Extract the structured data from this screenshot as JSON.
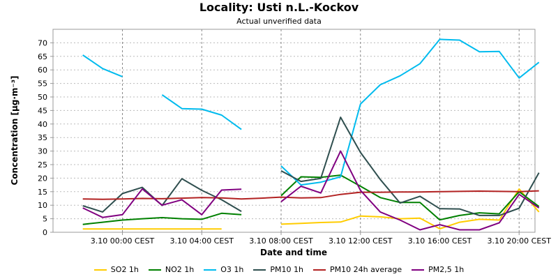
{
  "chart_data": {
    "type": "line",
    "title": "Locality: Usti n.L.-Kockov",
    "subtitle": "Actual unverified data",
    "xlabel": "Date and time",
    "ylabel": "Concentration [µg·m⁻³]",
    "ylim": [
      0,
      75
    ],
    "yticks": [
      0,
      5,
      10,
      15,
      20,
      25,
      30,
      35,
      40,
      45,
      50,
      55,
      60,
      65,
      70
    ],
    "xlim": [
      -3.5,
      20.8
    ],
    "xticks": [
      {
        "x": 0,
        "label": "3.10 00:00 CEST"
      },
      {
        "x": 4,
        "label": "3.10 04:00 CEST"
      },
      {
        "x": 8,
        "label": "3.10 08:00 CEST"
      },
      {
        "x": 12,
        "label": "3.10 12:00 CEST"
      },
      {
        "x": 16,
        "label": "3.10 16:00 CEST"
      },
      {
        "x": 20,
        "label": "3.10 20:00 CEST"
      }
    ],
    "x_hours": [
      -2,
      -1,
      0,
      1,
      2,
      3,
      4,
      5,
      6,
      7,
      8,
      9,
      10,
      11,
      12,
      13,
      14,
      15,
      16,
      17,
      18,
      19,
      20,
      21
    ],
    "grid": true,
    "legend_position": "bottom",
    "series": [
      {
        "name": "SO2 1h",
        "color": "#ffcc00",
        "values": [
          1.2,
          1.2,
          1.2,
          1.2,
          1.2,
          1.2,
          1.2,
          1.2,
          null,
          null,
          3,
          3.3,
          3.6,
          3.8,
          6,
          5.7,
          5,
          5.2,
          1.3,
          3.7,
          4.8,
          4.5,
          16,
          7.5
        ]
      },
      {
        "name": "NO2 1h",
        "color": "#008000",
        "values": [
          2.9,
          3.7,
          4.5,
          5,
          5.4,
          5,
          4.8,
          7,
          6.5,
          null,
          13.5,
          20.5,
          20.3,
          21.1,
          17,
          12.8,
          11,
          11,
          4.6,
          6.2,
          7.2,
          6.8,
          15,
          9.5
        ]
      },
      {
        "name": "O3 1h",
        "color": "#00bbee",
        "values": [
          65.5,
          60.5,
          57.5,
          null,
          50.8,
          45.7,
          45.5,
          43.3,
          38,
          null,
          24.5,
          17.5,
          18.5,
          20.5,
          47.4,
          54.5,
          57.8,
          62.3,
          71.3,
          71,
          66.7,
          66.8,
          57,
          62.8
        ]
      },
      {
        "name": "PM10 1h",
        "color": "#2f4f4f",
        "values": [
          9.8,
          7.5,
          14.3,
          16.6,
          9.9,
          19.8,
          15.5,
          12,
          7.7,
          null,
          22.7,
          18.8,
          19.9,
          42.5,
          29.5,
          19.5,
          10.8,
          13.3,
          8.7,
          8.6,
          6.2,
          6.2,
          8.9,
          22
        ]
      },
      {
        "name": "PM10 24h average",
        "color": "#b22222",
        "values": [
          12.3,
          12.2,
          12.3,
          12.5,
          12.4,
          12.6,
          12.8,
          12.7,
          12.3,
          12.6,
          13,
          12.7,
          12.8,
          14,
          14.8,
          14.8,
          14.9,
          14.9,
          15,
          15.1,
          15.2,
          15.1,
          15,
          15.3
        ]
      },
      {
        "name": "PM2,5 1h",
        "color": "#800080",
        "values": [
          9,
          5.5,
          6.5,
          16,
          10,
          12,
          6.5,
          15.6,
          15.9,
          null,
          11.3,
          17,
          14.5,
          30,
          15.5,
          7.5,
          4.5,
          0.9,
          2.8,
          0.9,
          0.9,
          3.5,
          14,
          9
        ]
      }
    ]
  }
}
